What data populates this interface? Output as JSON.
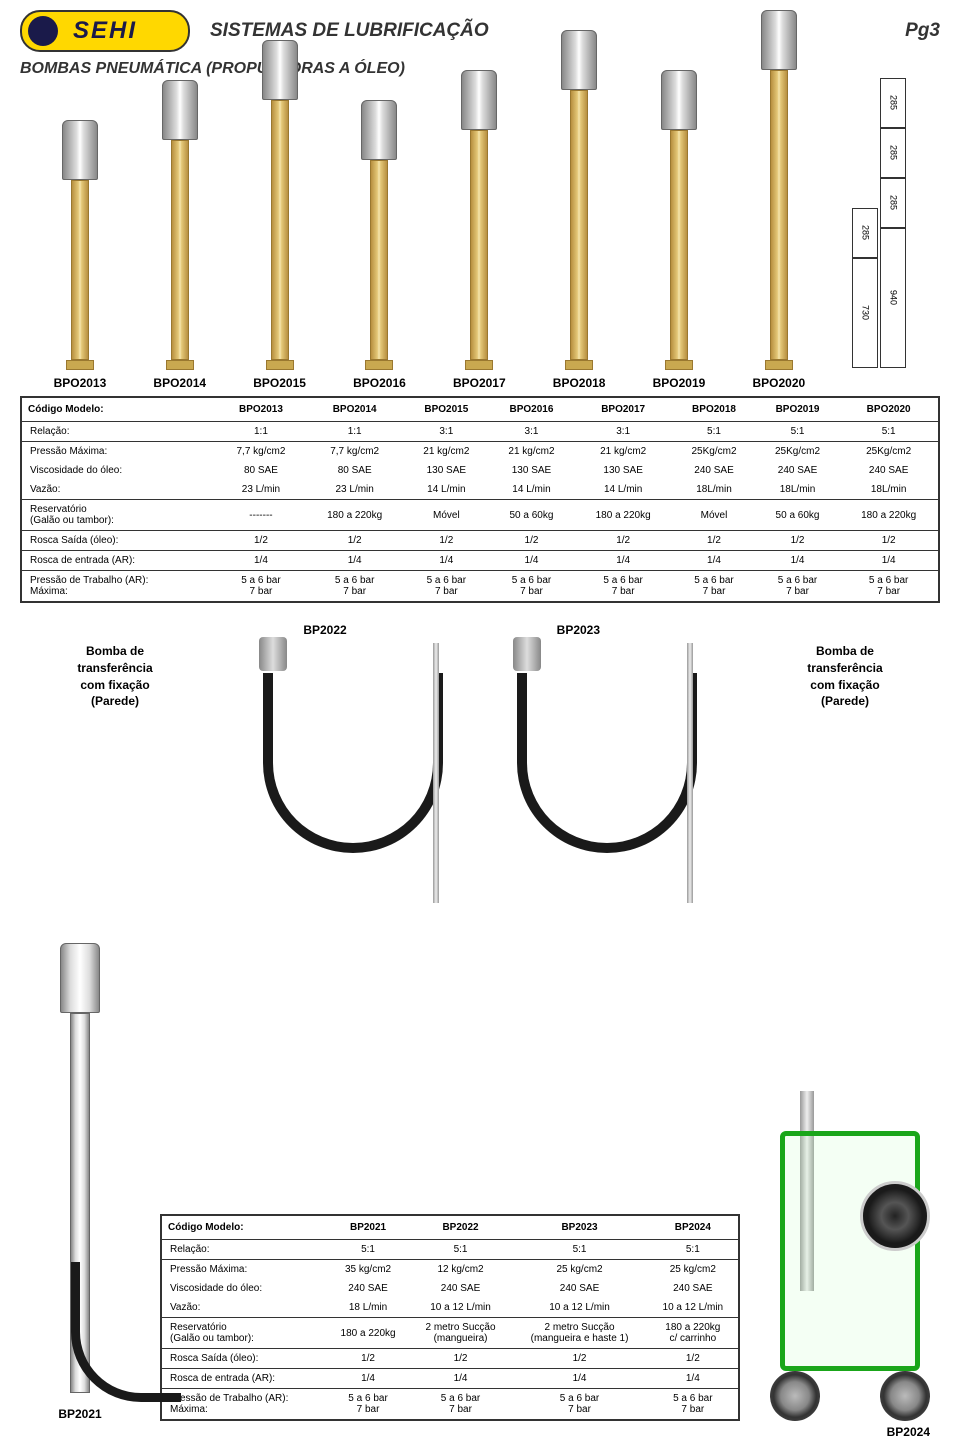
{
  "logo_text": "SEHI",
  "title": "SISTEMAS DE LUBRIFICAÇÃO",
  "page_num": "Pg3",
  "section": "BOMBAS PNEUMÁTICA (PROPULSORAS A ÓLEO)",
  "pump_heights": [
    180,
    220,
    260,
    200,
    230,
    270,
    230,
    290
  ],
  "dims": {
    "a": "285",
    "b": "285",
    "c": "285",
    "d": "285",
    "e": "730",
    "f": "940"
  },
  "table1": {
    "col_labels": [
      "BPO2013",
      "BPO2014",
      "BPO2015",
      "BPO2016",
      "BPO2017",
      "BPO2018",
      "BPO2019",
      "BPO2020"
    ],
    "rows": [
      {
        "label": "Código Modelo:",
        "vals": [
          "BPO2013",
          "BPO2014",
          "BPO2015",
          "BPO2016",
          "BPO2017",
          "BPO2018",
          "BPO2019",
          "BPO2020"
        ],
        "hdr": true
      },
      {
        "label": "Relação:",
        "vals": [
          "1:1",
          "1:1",
          "3:1",
          "3:1",
          "3:1",
          "5:1",
          "5:1",
          "5:1"
        ],
        "sep": true
      },
      {
        "label": "Pressão Máxima:",
        "vals": [
          "7,7 kg/cm2",
          "7,7 kg/cm2",
          "21 kg/cm2",
          "21 kg/cm2",
          "21 kg/cm2",
          "25Kg/cm2",
          "25Kg/cm2",
          "25Kg/cm2"
        ],
        "sep": true
      },
      {
        "label": "Viscosidade do óleo:",
        "vals": [
          "80 SAE",
          "80 SAE",
          "130 SAE",
          "130 SAE",
          "130 SAE",
          "240 SAE",
          "240 SAE",
          "240 SAE"
        ]
      },
      {
        "label": "Vazão:",
        "vals": [
          "23 L/min",
          "23 L/min",
          "14 L/min",
          "14 L/min",
          "14 L/min",
          "18L/min",
          "18L/min",
          "18L/min"
        ]
      },
      {
        "label": "Reservatório\n(Galão ou tambor):",
        "vals": [
          "-------",
          "180 a 220kg",
          "Móvel",
          "50 a 60kg",
          "180 a 220kg",
          "Móvel",
          "50 a 60kg",
          "180 a 220kg"
        ],
        "sep": true
      },
      {
        "label": "Rosca Saída (óleo):",
        "vals": [
          "1/2",
          "1/2",
          "1/2",
          "1/2",
          "1/2",
          "1/2",
          "1/2",
          "1/2"
        ],
        "sep": true
      },
      {
        "label": "Rosca de entrada (AR):",
        "vals": [
          "1/4",
          "1/4",
          "1/4",
          "1/4",
          "1/4",
          "1/4",
          "1/4",
          "1/4"
        ],
        "sep": true
      },
      {
        "label": "Pressão de Trabalho (AR):\nMáxima:",
        "vals": [
          "5 a 6 bar\n7 bar",
          "5 a 6 bar\n7 bar",
          "5 a 6 bar\n7 bar",
          "5 a 6 bar\n7 bar",
          "5 a 6 bar\n7 bar",
          "5 a 6 bar\n7 bar",
          "5 a 6 bar\n7 bar",
          "5 a 6 bar\n7 bar"
        ],
        "sep": true
      }
    ]
  },
  "mid": {
    "left_label": "Bomba de\ntransferência\ncom fixação\n(Parede)",
    "right_label": "Bomba de\ntransferência\ncom fixação\n(Parede)",
    "code_left": "BP2022",
    "code_right": "BP2023"
  },
  "table2": {
    "rows": [
      {
        "label": "Código Modelo:",
        "vals": [
          "BP2021",
          "BP2022",
          "BP2023",
          "BP2024"
        ],
        "hdr": true
      },
      {
        "label": "Relação:",
        "vals": [
          "5:1",
          "5:1",
          "5:1",
          "5:1"
        ],
        "sep": true
      },
      {
        "label": "Pressão Máxima:",
        "vals": [
          "35 kg/cm2",
          "12 kg/cm2",
          "25 kg/cm2",
          "25 kg/cm2"
        ],
        "sep": true
      },
      {
        "label": "Viscosidade do óleo:",
        "vals": [
          "240 SAE",
          "240 SAE",
          "240 SAE",
          "240 SAE"
        ]
      },
      {
        "label": "Vazão:",
        "vals": [
          "18 L/min",
          "10 a 12 L/min",
          "10 a 12 L/min",
          "10 a 12 L/min"
        ]
      },
      {
        "label": "Reservatório\n(Galão ou tambor):",
        "vals": [
          "180 a 220kg",
          "2 metro Sucção\n(mangueira)",
          "2 metro Sucção\n(mangueira e haste 1)",
          "180 a 220kg\nc/ carrinho"
        ],
        "sep": true
      },
      {
        "label": "Rosca Saída (óleo):",
        "vals": [
          "1/2",
          "1/2",
          "1/2",
          "1/2"
        ],
        "sep": true
      },
      {
        "label": "Rosca de entrada (AR):",
        "vals": [
          "1/4",
          "1/4",
          "1/4",
          "1/4"
        ],
        "sep": true
      },
      {
        "label": "Pressão de Trabalho (AR):\nMáxima:",
        "vals": [
          "5 a 6 bar\n7 bar",
          "5 a 6 bar\n7 bar",
          "5 a 6 bar\n7 bar",
          "5 a 6 bar\n7 bar"
        ],
        "sep": true
      }
    ]
  },
  "bp2021": "BP2021",
  "bp2024": "BP2024"
}
